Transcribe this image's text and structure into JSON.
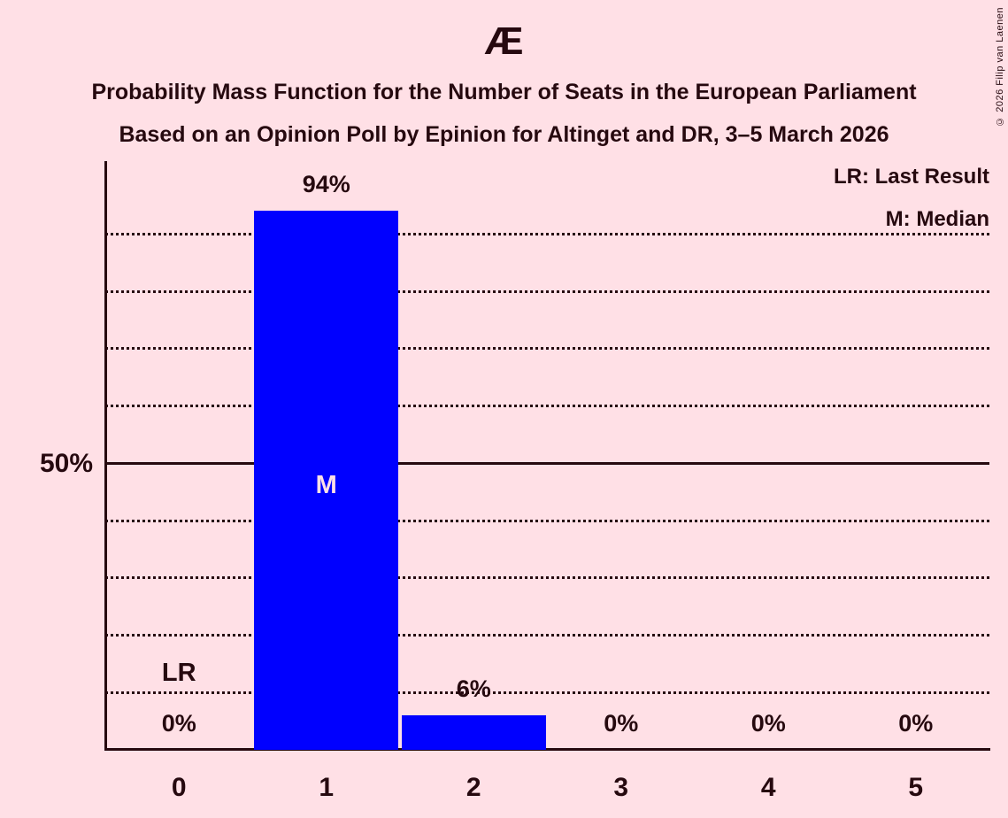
{
  "title": "Æ",
  "subtitle1": "Probability Mass Function for the Number of Seats in the European Parliament",
  "subtitle2": "Based on an Opinion Poll by Epinion for Altinget and DR, 3–5 March 2026",
  "copyright": "© 2026 Filip van Laenen",
  "legend": {
    "lr": "LR: Last Result",
    "m": "M: Median"
  },
  "y_axis": {
    "label_50": "50%"
  },
  "colors": {
    "background": "#ffe0e6",
    "bar": "#0000ff",
    "text": "#26090f",
    "median_label": "#ffe0e6"
  },
  "chart_data": {
    "type": "bar",
    "title": "Probability Mass Function for the Number of Seats in the European Parliament",
    "subtitle": "Based on an Opinion Poll by Epinion for Altinget and DR, 3–5 March 2026",
    "party": "Æ",
    "categories": [
      "0",
      "1",
      "2",
      "3",
      "4",
      "5"
    ],
    "values": [
      0,
      94,
      6,
      0,
      0,
      0
    ],
    "value_labels": [
      "0%",
      "94%",
      "6%",
      "0%",
      "0%",
      "0%"
    ],
    "xlabel": "",
    "ylabel": "",
    "ylim": [
      0,
      100
    ],
    "ytick_labeled": [
      50
    ],
    "gridlines_pct": [
      10,
      20,
      30,
      40,
      50,
      60,
      70,
      80,
      90
    ],
    "solid_gridline_pct": 50,
    "grid": "dotted",
    "legend_position": "top-right",
    "legend_entries": [
      "LR: Last Result",
      "M: Median"
    ],
    "annotations": [
      {
        "text": "LR",
        "meaning": "Last Result",
        "category_index": 0,
        "y_pct": 13.4,
        "color_role": "text"
      },
      {
        "text": "M",
        "meaning": "Median",
        "category_index": 1,
        "y_pct": 46.2,
        "color_role": "median_label"
      }
    ]
  }
}
